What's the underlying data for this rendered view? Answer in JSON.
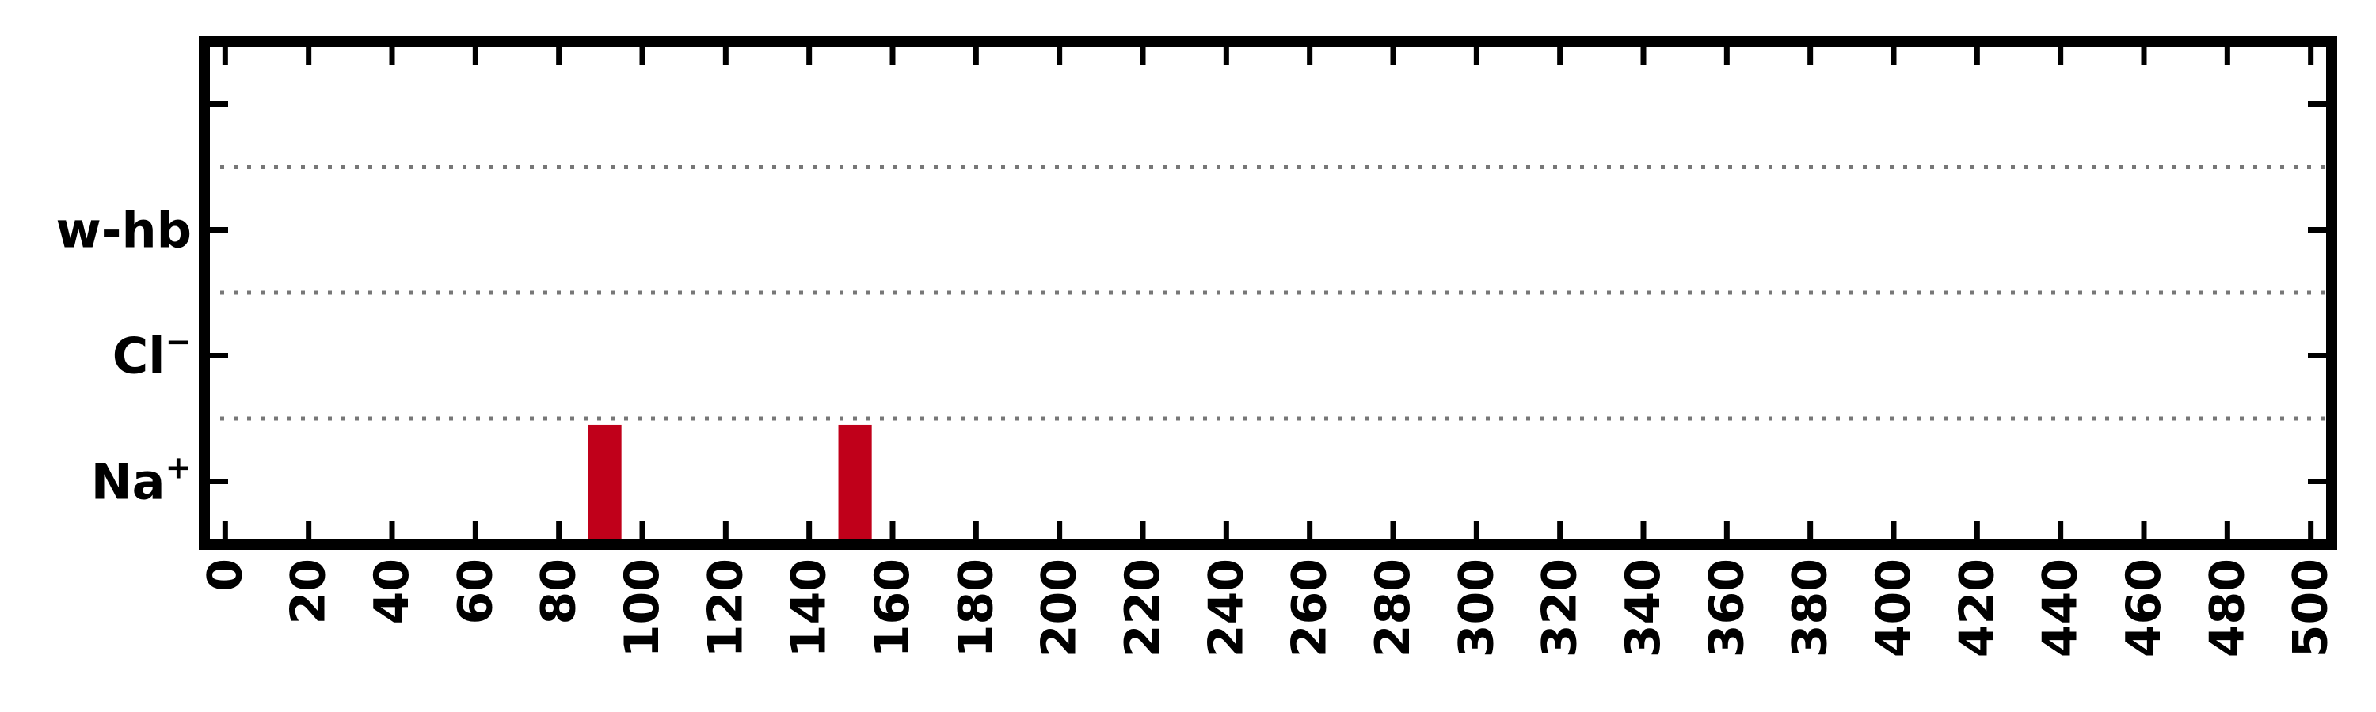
{
  "chart_data": {
    "type": "bar",
    "title": "",
    "xlabel": "",
    "ylabel": "",
    "xlim": [
      -5,
      505
    ],
    "ylim": [
      -0.5,
      3.5
    ],
    "x_ticks": [
      0,
      20,
      40,
      60,
      80,
      100,
      120,
      140,
      160,
      180,
      200,
      220,
      240,
      260,
      280,
      300,
      320,
      340,
      360,
      380,
      400,
      420,
      440,
      460,
      480,
      500
    ],
    "y_categories": [
      {
        "label": "Na",
        "sup": "+",
        "value": 0
      },
      {
        "label": "Cl",
        "sup": "−",
        "value": 1
      },
      {
        "label": "w-hb",
        "sup": "",
        "value": 2
      },
      {
        "label": "",
        "sup": "",
        "value": 3
      }
    ],
    "separators": [
      0.5,
      1.5,
      2.5
    ],
    "grid": "dotted horizontal separators between rows",
    "legend": "none",
    "series": [
      {
        "category": "Na+",
        "color": "#c0001a",
        "intervals": [
          [
            87,
            95
          ],
          [
            147,
            155
          ]
        ]
      }
    ]
  }
}
